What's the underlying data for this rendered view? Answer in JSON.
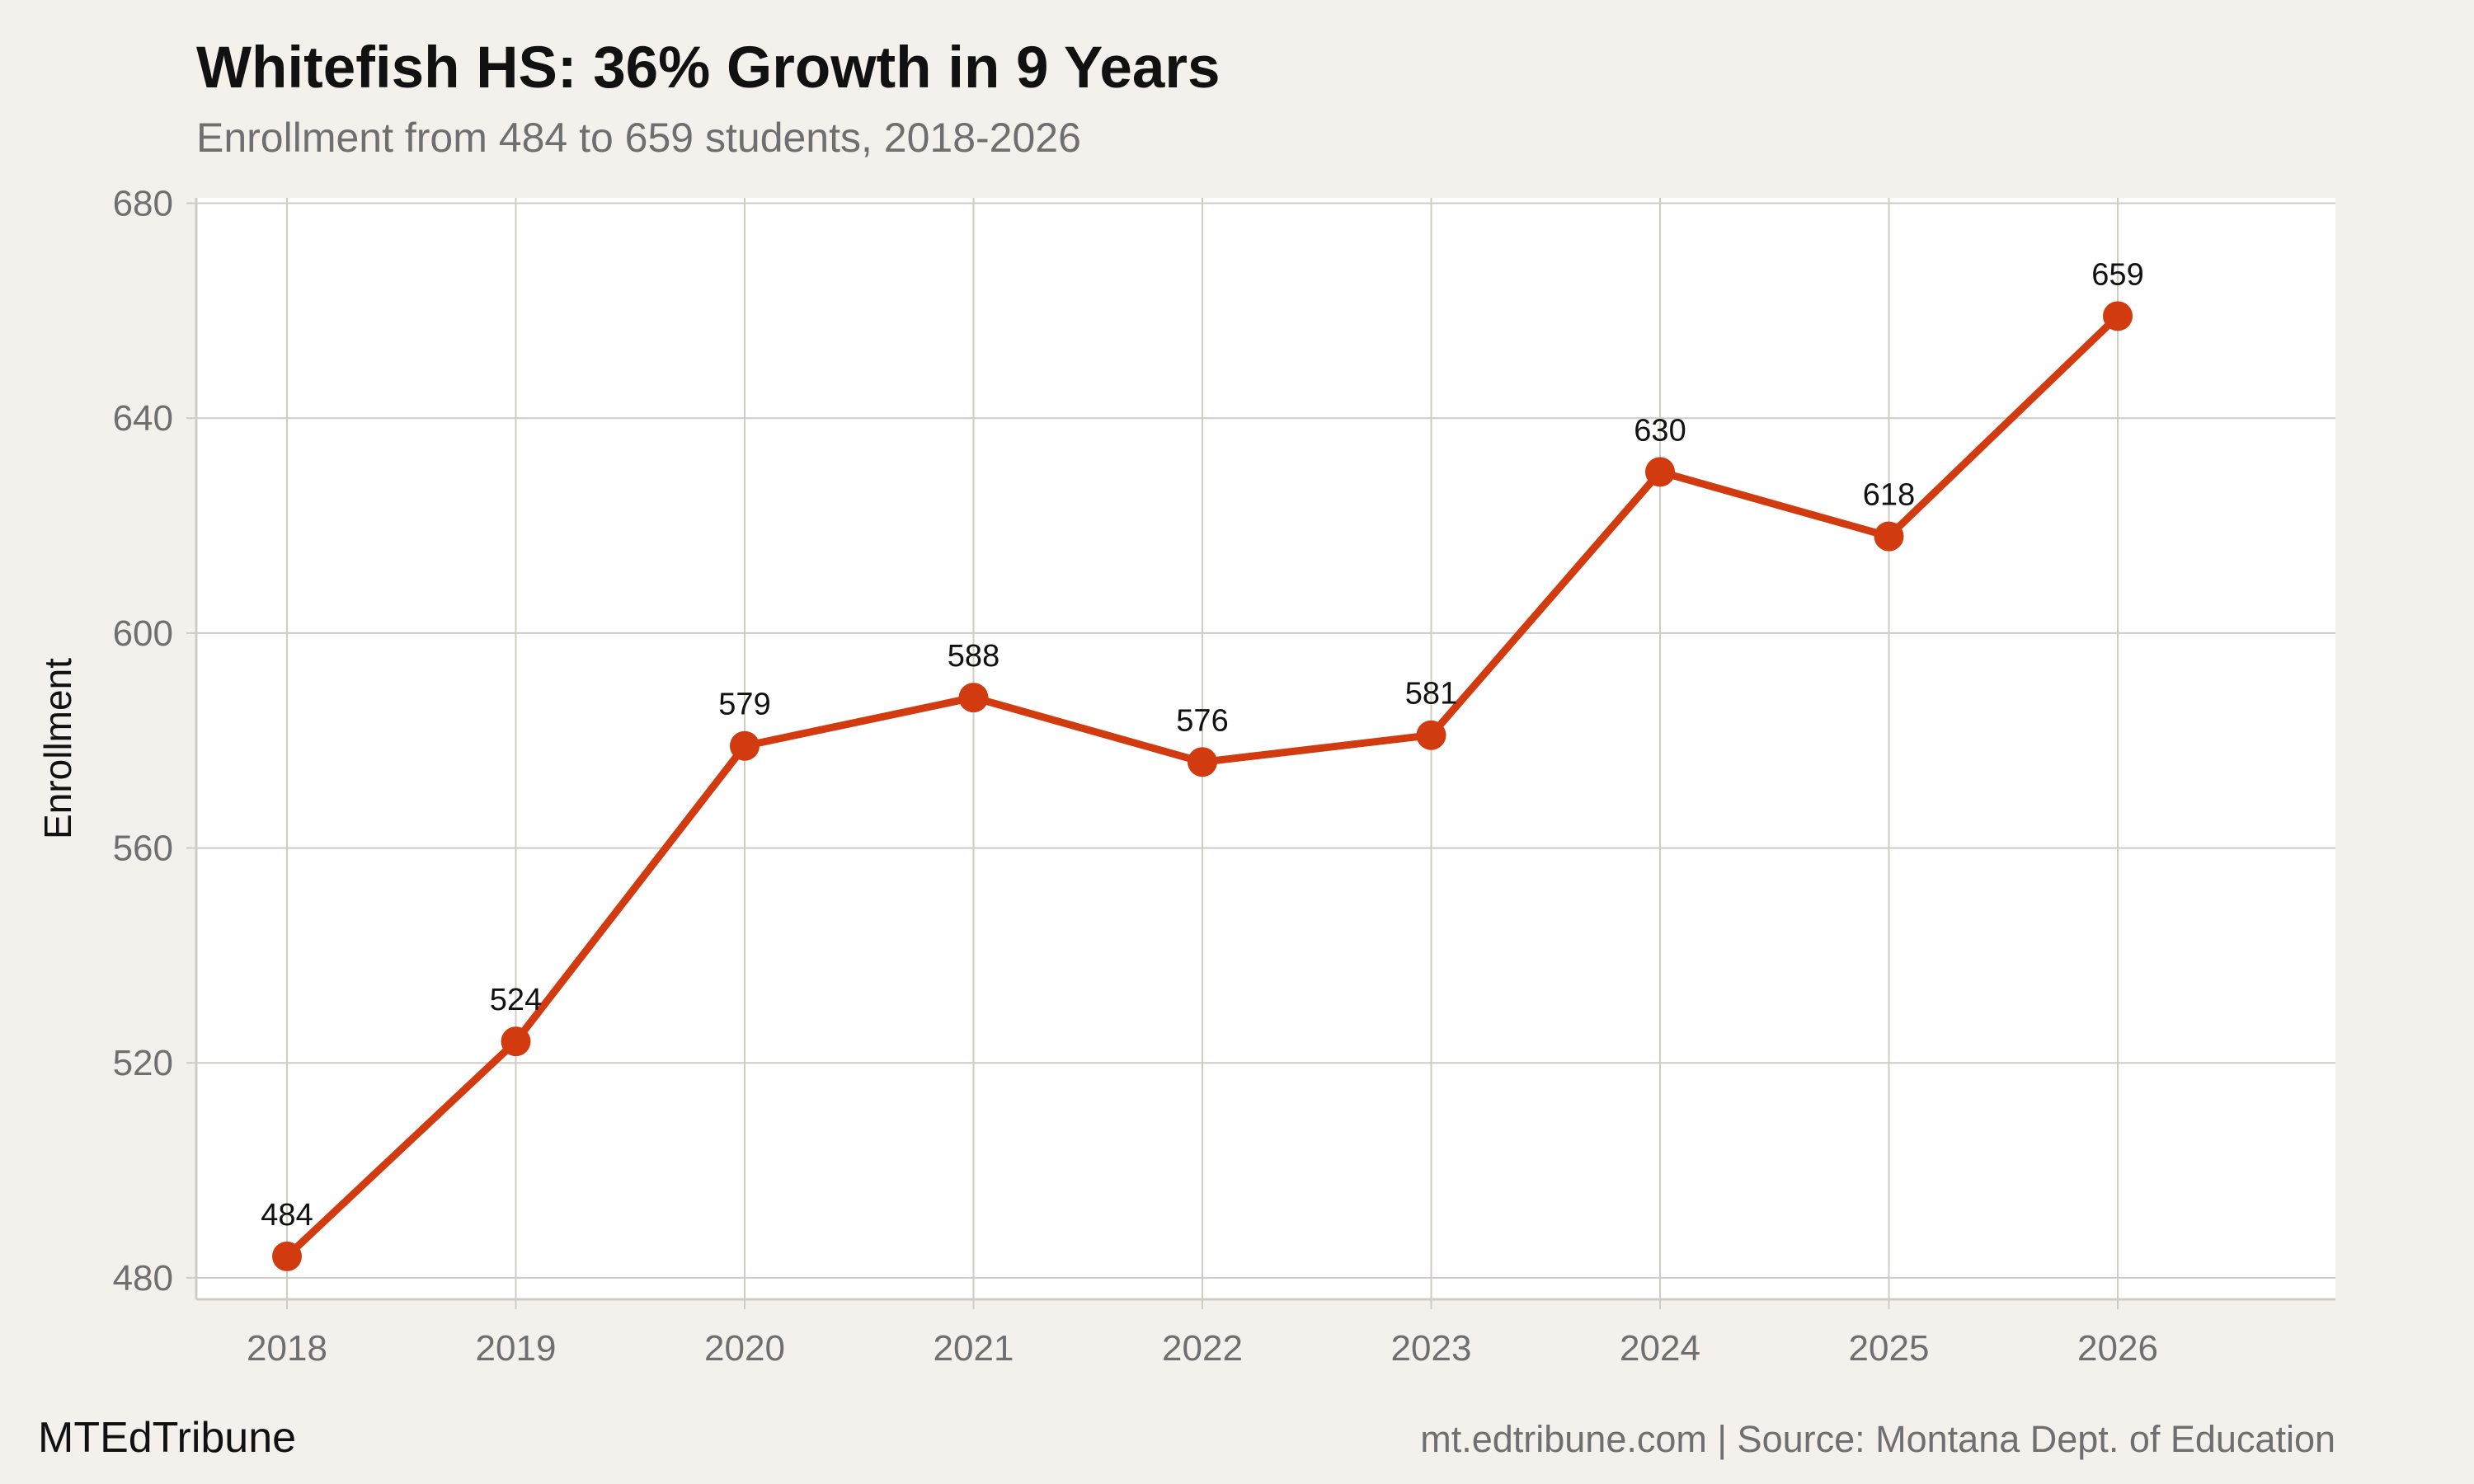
{
  "chart_data": {
    "type": "line",
    "title": "Whitefish HS: 36% Growth in 9 Years",
    "subtitle": "Enrollment from 484 to 659 students, 2018-2026",
    "xlabel": "",
    "ylabel": "Enrollment",
    "categories": [
      "2018",
      "2019",
      "2020",
      "2021",
      "2022",
      "2023",
      "2024",
      "2025",
      "2026"
    ],
    "values": [
      484,
      524,
      579,
      588,
      576,
      581,
      630,
      618,
      659
    ],
    "data_labels": [
      "484",
      "524",
      "579",
      "588",
      "576",
      "581",
      "630",
      "618",
      "659"
    ],
    "yticks": [
      480,
      520,
      560,
      600,
      640,
      680
    ],
    "ytick_labels": [
      "480",
      "520",
      "560",
      "600",
      "640",
      "680"
    ],
    "ylim": [
      476,
      681
    ],
    "grid": true,
    "legend": "none",
    "line_color": "#d13b0f",
    "background_color": "#f4f1ec",
    "panel_color": "#ffffff",
    "grid_color": "#cfccc6"
  },
  "footer": {
    "brand": "MTEdTribune",
    "source": "mt.edtribune.com | Source: Montana Dept. of Education"
  }
}
